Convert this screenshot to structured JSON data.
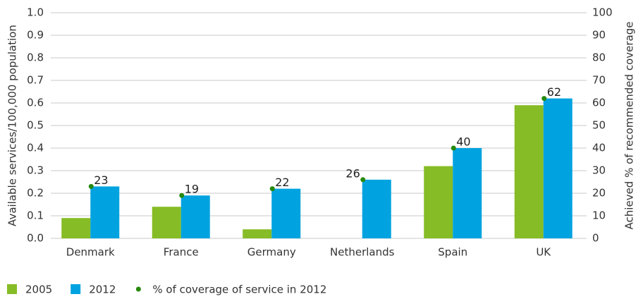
{
  "chart_data": {
    "type": "bar",
    "categories": [
      "Denmark",
      "France",
      "Germany",
      "Netherlands",
      "Spain",
      "UK"
    ],
    "series": [
      {
        "name": "2005",
        "color": "#86bc25",
        "values": [
          0.09,
          0.14,
          0.04,
          null,
          0.32,
          0.59
        ]
      },
      {
        "name": "2012",
        "color": "#00a3e0",
        "values": [
          0.23,
          0.19,
          0.22,
          0.26,
          0.4,
          0.62
        ]
      },
      {
        "name": "% of coverage of service in 2012",
        "color": "#26890d",
        "axis": "y2",
        "type": "scatter",
        "values": [
          23,
          19,
          22,
          26,
          40,
          62
        ]
      }
    ],
    "ylabel": "Available services/100,000 population",
    "y2label": "Achieved % of recommended coverage",
    "ylim": [
      0,
      1
    ],
    "yticks": [
      {
        "value": 0,
        "label": "0.0"
      },
      0.1,
      0.2,
      0.3,
      0.4,
      0.5,
      0.6,
      0.7,
      0.8,
      0.9,
      {
        "value": 1,
        "label": "1.0"
      }
    ],
    "y2lim": [
      0,
      100
    ],
    "y2ticks": [
      0,
      10,
      20,
      30,
      40,
      50,
      60,
      70,
      80,
      90,
      100
    ],
    "grid": true,
    "legend": "bottom-left"
  }
}
